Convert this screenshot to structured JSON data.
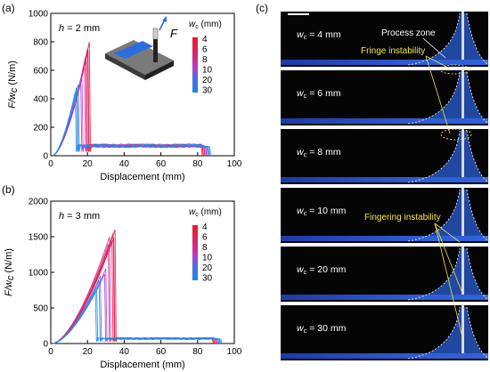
{
  "figure": {
    "panel_labels": [
      "(a)",
      "(b)",
      "(c)"
    ]
  },
  "chart_data": [
    {
      "type": "line",
      "panel": "(a)",
      "annotation": "h = 2 mm",
      "annotation_var": "h",
      "annotation_value": " = 2 mm",
      "xlabel": "Displacement (mm)",
      "ylabel_main": "F/w",
      "ylabel_sub": "c",
      "ylabel_unit": " (N/m)",
      "xlim": [
        0,
        100
      ],
      "ylim": [
        0,
        1000
      ],
      "xticks": [
        0,
        20,
        40,
        60,
        80,
        100
      ],
      "yticks": [
        0,
        200,
        400,
        600,
        800,
        1000
      ],
      "legend_title_var": "w",
      "legend_title_sub": "c",
      "legend_title_unit": " (mm)",
      "legend_labels": [
        "4",
        "6",
        "8",
        "10",
        "20",
        "30"
      ],
      "plateau": 70,
      "tail_end": 82,
      "series": [
        {
          "name": "4",
          "peak_x": 21,
          "peak_y": 800,
          "color": "#e8112d"
        },
        {
          "name": "6",
          "peak_x": 20,
          "peak_y": 750,
          "color": "#e21c5a"
        },
        {
          "name": "8",
          "peak_x": 19,
          "peak_y": 700,
          "color": "#d12d8e"
        },
        {
          "name": "10",
          "peak_x": 17,
          "peak_y": 560,
          "color": "#a93fd0"
        },
        {
          "name": "20",
          "peak_x": 15,
          "peak_y": 500,
          "color": "#3c78e8"
        },
        {
          "name": "30",
          "peak_x": 14,
          "peak_y": 480,
          "color": "#1c8fe3"
        }
      ]
    },
    {
      "type": "line",
      "panel": "(b)",
      "annotation": "h = 3 mm",
      "annotation_var": "h",
      "annotation_value": " = 3 mm",
      "xlabel": "Displacement (mm)",
      "ylabel_main": "F/w",
      "ylabel_sub": "c",
      "ylabel_unit": " (N/m)",
      "xlim": [
        0,
        100
      ],
      "ylim": [
        0,
        2000
      ],
      "xticks": [
        0,
        20,
        40,
        60,
        80,
        100
      ],
      "yticks": [
        0,
        500,
        1000,
        1500,
        2000
      ],
      "legend_title_var": "w",
      "legend_title_sub": "c",
      "legend_title_unit": " (mm)",
      "legend_labels": [
        "4",
        "6",
        "8",
        "10",
        "20",
        "30"
      ],
      "plateau": 70,
      "tail_end": 88,
      "series": [
        {
          "name": "4",
          "peak_x": 35,
          "peak_y": 1600,
          "color": "#e8112d"
        },
        {
          "name": "6",
          "peak_x": 34,
          "peak_y": 1550,
          "color": "#e21c5a"
        },
        {
          "name": "8",
          "peak_x": 32,
          "peak_y": 1500,
          "color": "#d12d8e"
        },
        {
          "name": "10",
          "peak_x": 30,
          "peak_y": 1050,
          "color": "#a93fd0"
        },
        {
          "name": "20",
          "peak_x": 27,
          "peak_y": 950,
          "color": "#3c78e8"
        },
        {
          "name": "30",
          "peak_x": 25,
          "peak_y": 780,
          "color": "#1c8fe3"
        }
      ]
    }
  ],
  "photos": {
    "labels": [
      {
        "var": "w",
        "sub": "c",
        "value": " = 4 mm"
      },
      {
        "var": "w",
        "sub": "c",
        "value": " = 6 mm"
      },
      {
        "var": "w",
        "sub": "c",
        "value": " = 8 mm"
      },
      {
        "var": "w",
        "sub": "c",
        "value": " = 10 mm"
      },
      {
        "var": "w",
        "sub": "c",
        "value": " = 20 mm"
      },
      {
        "var": "w",
        "sub": "c",
        "value": " = 30 mm"
      }
    ],
    "annotations": {
      "process_zone": "Process zone",
      "fringe_instability": "Fringe instability",
      "fingering_instability": "Fingering instability"
    },
    "force_symbol": "F",
    "colors": {
      "background": "#050505",
      "gel": "#2f55c9",
      "highlight": "#f4e64a"
    }
  }
}
